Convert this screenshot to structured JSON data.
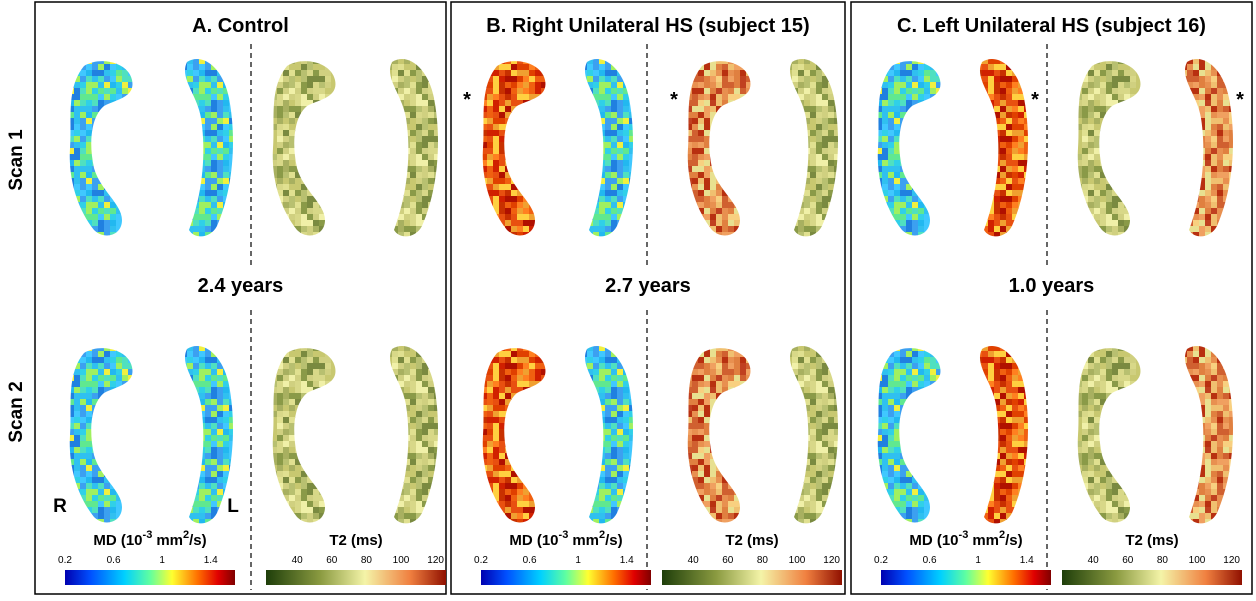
{
  "row_labels": [
    "Scan 1",
    "Scan 2"
  ],
  "panels": [
    {
      "title": "A. Control",
      "interval": "2.4 years",
      "side_labels": {
        "right": "R",
        "left": "L"
      },
      "md_colorbar": {
        "label": {
          "base": "MD (10",
          "exp": "-3",
          "unit": "mm",
          "unit_exp": "2",
          "tail": "/s)"
        },
        "ticks": [
          0.2,
          0.6,
          1,
          1.4
        ],
        "range": [
          0.2,
          1.6
        ]
      },
      "t2_colorbar": {
        "label": "T2 (ms)",
        "ticks": [
          40,
          60,
          80,
          100,
          120
        ],
        "range": [
          22,
          126
        ]
      }
    },
    {
      "title": "B. Right Unilateral HS (subject 15)",
      "interval": "2.7 years",
      "marker": "*",
      "md_colorbar": {
        "label": {
          "base": "MD (10",
          "exp": "-3",
          "unit": "mm",
          "unit_exp": "2",
          "tail": "/s)"
        },
        "ticks": [
          0.2,
          0.6,
          1,
          1.4
        ],
        "range": [
          0.2,
          1.6
        ]
      },
      "t2_colorbar": {
        "label": "T2 (ms)",
        "ticks": [
          40,
          60,
          80,
          100,
          120
        ],
        "range": [
          22,
          126
        ]
      }
    },
    {
      "title": "C. Left Unilateral HS (subject 16)",
      "interval": "1.0 years",
      "marker": "*",
      "md_colorbar": {
        "label": {
          "base": "MD (10",
          "exp": "-3",
          "unit": "mm",
          "unit_exp": "2",
          "tail": "/s)"
        },
        "ticks": [
          0.2,
          0.6,
          1,
          1.4
        ],
        "range": [
          0.2,
          1.6
        ]
      },
      "t2_colorbar": {
        "label": "T2 (ms)",
        "ticks": [
          40,
          60,
          80,
          100,
          120
        ],
        "range": [
          22,
          126
        ]
      }
    }
  ]
}
